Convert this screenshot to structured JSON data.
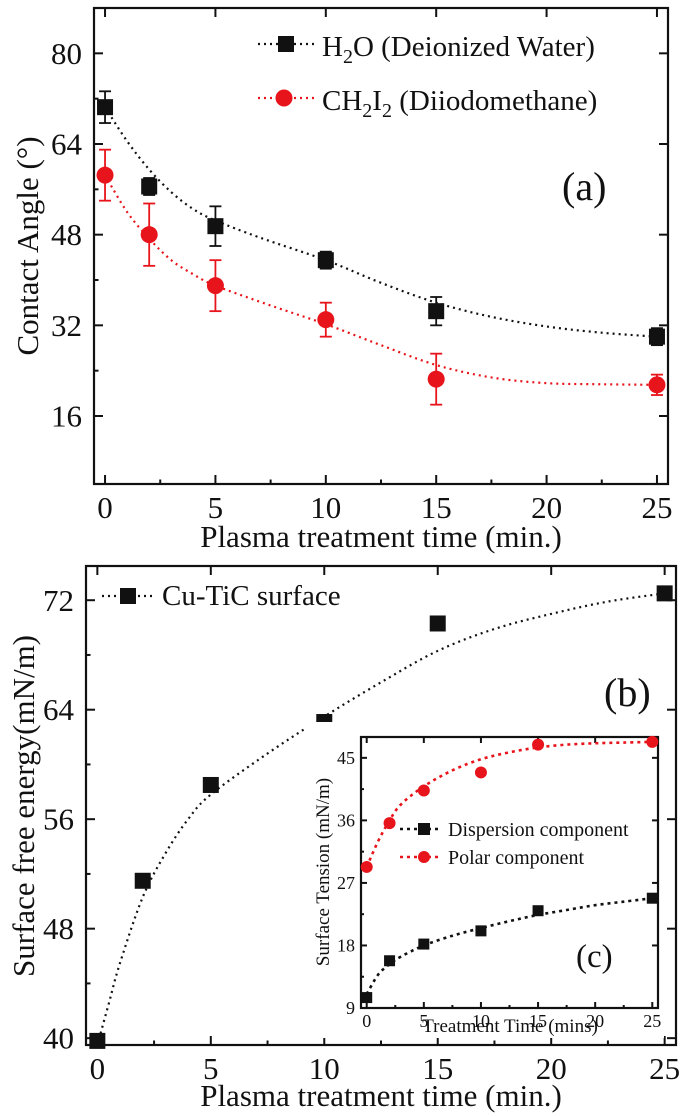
{
  "chart_data": [
    {
      "type": "scatter",
      "title": "",
      "panel_label": "(a)",
      "xlabel": "Plasma treatment time (min.)",
      "ylabel": "Contact Angle (°)",
      "xlim": [
        -0.5,
        25.5
      ],
      "ylim": [
        4,
        88
      ],
      "xticks": [
        0,
        5,
        10,
        15,
        20,
        25
      ],
      "yticks": [
        16,
        32,
        48,
        64,
        80
      ],
      "legend_position": "top-right",
      "series": [
        {
          "name": "H2O (Deionized Water)",
          "color": "#111111",
          "marker": "square",
          "x": [
            0,
            2,
            5,
            10,
            15,
            25
          ],
          "y": [
            70.5,
            56.5,
            49.5,
            43.5,
            34.5,
            30
          ],
          "yerr": [
            2.8,
            1.5,
            3.5,
            1.5,
            2.5,
            1.5
          ],
          "fit": [
            [
              0,
              70.5
            ],
            [
              1,
              64.5
            ],
            [
              2,
              59.5
            ],
            [
              3,
              55.5
            ],
            [
              4,
              52.5
            ],
            [
              5,
              50.5
            ],
            [
              7,
              47.5
            ],
            [
              10,
              43.5
            ],
            [
              12.5,
              39.5
            ],
            [
              15,
              36
            ],
            [
              17.5,
              33.5
            ],
            [
              20,
              31.8
            ],
            [
              22.5,
              30.7
            ],
            [
              25,
              30
            ]
          ]
        },
        {
          "name": "CH2I2 (Diiodomethane)",
          "color": "#e8141b",
          "marker": "circle",
          "x": [
            0,
            2,
            5,
            10,
            15,
            25
          ],
          "y": [
            58.5,
            48,
            39,
            33,
            22.5,
            21.5
          ],
          "yerr": [
            4.5,
            5.5,
            4.5,
            3,
            4.5,
            1.8
          ],
          "fit": [
            [
              0,
              58.5
            ],
            [
              1,
              52
            ],
            [
              2,
              47.3
            ],
            [
              3,
              43.5
            ],
            [
              4,
              41
            ],
            [
              5,
              39
            ],
            [
              7.5,
              35.5
            ],
            [
              10,
              32.2
            ],
            [
              12.5,
              28.5
            ],
            [
              15,
              25
            ],
            [
              17.5,
              22.8
            ],
            [
              20,
              21.8
            ],
            [
              22.5,
              21.6
            ],
            [
              25,
              21.5
            ]
          ]
        }
      ]
    },
    {
      "type": "scatter",
      "title": "",
      "panel_label": "(b)",
      "xlabel": "Plasma treatment time (min.)",
      "ylabel": "Surface free energy(mN/m)",
      "xlim": [
        -0.5,
        25.5
      ],
      "ylim": [
        39.5,
        74.5
      ],
      "xticks": [
        0,
        5,
        10,
        15,
        20,
        25
      ],
      "yticks": [
        40,
        48,
        56,
        64,
        72
      ],
      "legend_position": "top-left",
      "series": [
        {
          "name": "Cu-TiC surface",
          "color": "#111111",
          "marker": "square",
          "x": [
            0,
            2,
            5,
            10,
            15,
            25
          ],
          "y": [
            39.8,
            51.5,
            58.5,
            63.1,
            70.3,
            72.5
          ],
          "fit": [
            [
              0,
              39.5
            ],
            [
              0.5,
              42.5
            ],
            [
              1,
              45.5
            ],
            [
              2,
              50.3
            ],
            [
              3,
              53.5
            ],
            [
              4,
              56
            ],
            [
              5,
              57.8
            ],
            [
              7.5,
              60.8
            ],
            [
              10,
              63.5
            ],
            [
              12.5,
              66
            ],
            [
              15,
              68.3
            ],
            [
              17.5,
              69.9
            ],
            [
              20,
              71
            ],
            [
              22.5,
              71.9
            ],
            [
              25,
              72.5
            ]
          ]
        }
      ]
    },
    {
      "type": "scatter",
      "title": "",
      "panel_label": "(c)",
      "xlabel": "Treatment Time (mins)",
      "ylabel": "Surface Tension (mN/m)",
      "xlim": [
        -0.5,
        25.5
      ],
      "ylim": [
        9,
        48
      ],
      "xticks": [
        0,
        5,
        10,
        15,
        20,
        25
      ],
      "yticks": [
        9,
        18,
        27,
        36,
        45
      ],
      "legend_position": "center",
      "series": [
        {
          "name": "Dispersion component",
          "color": "#111111",
          "marker": "square",
          "x": [
            0,
            2,
            5,
            10,
            15,
            25
          ],
          "y": [
            10.5,
            15.8,
            18.2,
            20.1,
            23,
            24.8
          ],
          "fit": [
            [
              0,
              11
            ],
            [
              1,
              13.8
            ],
            [
              2,
              15.3
            ],
            [
              3,
              16.4
            ],
            [
              5,
              18
            ],
            [
              7.5,
              19.4
            ],
            [
              10,
              20.5
            ],
            [
              12.5,
              21.5
            ],
            [
              15,
              22.4
            ],
            [
              17.5,
              23.1
            ],
            [
              20,
              23.8
            ],
            [
              22.5,
              24.3
            ],
            [
              25,
              24.8
            ]
          ]
        },
        {
          "name": "Polar component",
          "color": "#e8141b",
          "marker": "circle",
          "x": [
            0,
            2,
            5,
            10,
            15,
            25
          ],
          "y": [
            29.3,
            35.6,
            40.3,
            42.9,
            46.9,
            47.3
          ],
          "fit": [
            [
              0,
              29.3
            ],
            [
              1,
              33
            ],
            [
              2,
              36
            ],
            [
              3,
              38.3
            ],
            [
              5,
              40.9
            ],
            [
              7.5,
              43.2
            ],
            [
              10,
              44.8
            ],
            [
              12.5,
              45.8
            ],
            [
              15,
              46.5
            ],
            [
              17.5,
              46.9
            ],
            [
              20,
              47.1
            ],
            [
              22.5,
              47.2
            ],
            [
              25,
              47.3
            ]
          ]
        }
      ]
    }
  ],
  "legend_a": [
    {
      "base": "H",
      "sub": "2",
      "rest": "O (Deionized Water)"
    },
    {
      "base": "CH",
      "sub": "2",
      "mid": "I",
      "sub2": "2",
      "rest": " (Diiodomethane)"
    }
  ]
}
